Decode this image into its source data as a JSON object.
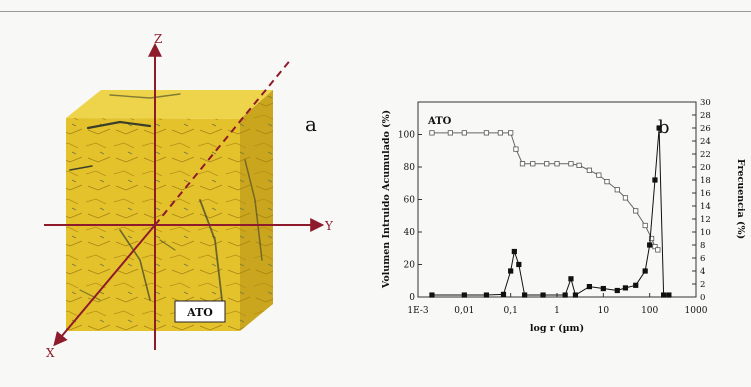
{
  "panel_a": {
    "label": "a",
    "axes": {
      "z": "Z",
      "y": "Y",
      "x": "X"
    },
    "sample_tag": "ATO",
    "colors": {
      "cube": "#e7c62e",
      "axis": "#8e1b2c"
    }
  },
  "panel_b": {
    "label": "b",
    "series_label": "ATO",
    "ylabel_left": "Volumen Intruido Acumulado (%)",
    "ylabel_right": "Frecuencia (%)",
    "xlabel": "log r (µm)",
    "xticks": [
      "1E-3",
      "0,01",
      "0,1",
      "1",
      "10",
      "100",
      "1000"
    ],
    "yticks_left": [
      "0",
      "20",
      "40",
      "60",
      "80",
      "100"
    ],
    "yticks_right": [
      "0",
      "2",
      "4",
      "6",
      "8",
      "10",
      "12",
      "14",
      "16",
      "18",
      "20",
      "22",
      "24",
      "26",
      "28",
      "30"
    ]
  },
  "chart_data": {
    "type": "line",
    "xscale": "log",
    "xlim": [
      0.001,
      1000
    ],
    "ylim": [
      0,
      120
    ],
    "y2lim": [
      0,
      30
    ],
    "grid": false,
    "series": [
      {
        "name": "ATO",
        "axis": "left",
        "marker": "open-square",
        "x": [
          0.002,
          0.005,
          0.01,
          0.03,
          0.06,
          0.1,
          0.13,
          0.18,
          0.3,
          0.6,
          1,
          2,
          3,
          5,
          8,
          12,
          20,
          30,
          50,
          80,
          110,
          130,
          150
        ],
        "y": [
          101,
          101,
          101,
          101,
          101,
          101,
          91,
          82,
          82,
          82,
          82,
          82,
          81,
          78,
          75,
          71,
          66,
          61,
          53,
          44,
          36,
          31,
          29
        ]
      },
      {
        "axis": "right",
        "marker": "filled-square",
        "x": [
          0.002,
          0.01,
          0.03,
          0.07,
          0.1,
          0.12,
          0.15,
          0.2,
          0.5,
          1.5,
          2,
          2.5,
          5,
          10,
          20,
          30,
          50,
          80,
          100,
          130,
          160,
          200,
          260
        ],
        "y": [
          0.3,
          0.3,
          0.3,
          0.4,
          4,
          7,
          5,
          0.3,
          0.3,
          0.3,
          2.8,
          0.3,
          1.6,
          1.3,
          1,
          1.4,
          1.8,
          4,
          8,
          18,
          26,
          0.3,
          0.3
        ]
      }
    ]
  }
}
